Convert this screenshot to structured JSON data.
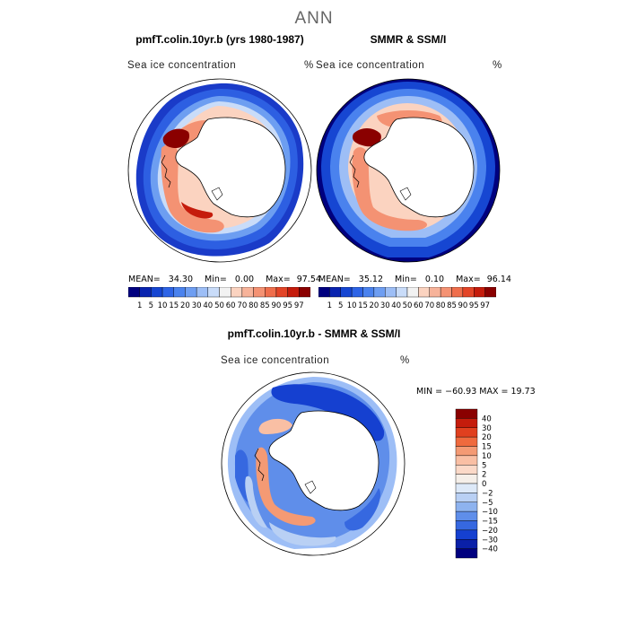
{
  "page_title": "ANN",
  "panel_left": {
    "subtitle": "pmfT.colin.10yr.b (yrs 1980-1987)",
    "variable": "Sea ice concentration",
    "unit": "%",
    "mean_label": "MEAN=",
    "mean": "34.30",
    "min_label": "Min=",
    "min": "0.00",
    "max_label": "Max=",
    "max": "97.54"
  },
  "panel_right": {
    "subtitle": "SMMR & SSM/I",
    "variable": "Sea ice concentration",
    "unit": "%",
    "mean_label": "MEAN=",
    "mean": "35.12",
    "min_label": "Min=",
    "min": "0.10",
    "max_label": "Max=",
    "max": "96.14"
  },
  "colorbar_top": {
    "labels": [
      "1",
      "5",
      "10",
      "15",
      "20",
      "30",
      "40",
      "50",
      "60",
      "70",
      "80",
      "85",
      "90",
      "95",
      "97"
    ],
    "colors": [
      "#00007f",
      "#0a24b0",
      "#1646d2",
      "#2e64e6",
      "#4a82ee",
      "#6e9ef2",
      "#9dbef6",
      "#c9dcf9",
      "#f2f2f2",
      "#fbd3c0",
      "#f7b39a",
      "#f49273",
      "#ef6e4c",
      "#e34528",
      "#c51c0c",
      "#8a0000"
    ]
  },
  "panel_diff": {
    "subtitle": "pmfT.colin.10yr.b - SMMR & SSM/I",
    "variable": "Sea ice concentration",
    "unit": "%",
    "minmax_text": "MIN = −60.93 MAX =  19.73"
  },
  "colorbar_diff": {
    "labels": [
      "40",
      "30",
      "20",
      "15",
      "10",
      "5",
      "2",
      "0",
      "−2",
      "−5",
      "−10",
      "−15",
      "−20",
      "−30",
      "−40"
    ],
    "colors": [
      "#8a0000",
      "#c51c0c",
      "#e0401f",
      "#ef6a3e",
      "#f49a74",
      "#f9bfa4",
      "#fbd9c8",
      "#f5efe9",
      "#dde9f8",
      "#b9d0f4",
      "#8eb3ef",
      "#5f8eea",
      "#3668e0",
      "#1540d0",
      "#0a20a8",
      "#00007f"
    ]
  }
}
